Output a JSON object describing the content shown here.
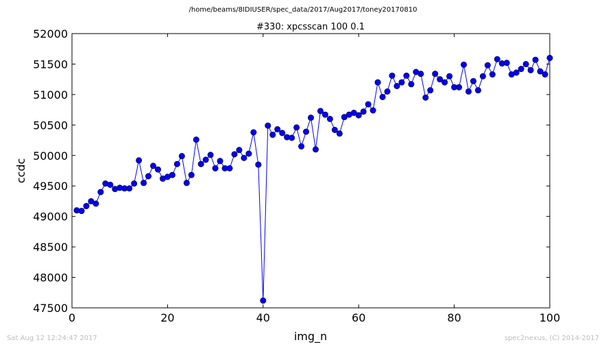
{
  "suptitle": "/home/beams/8IDIUSER/spec_data/2017/Aug2017/toney20170810",
  "footer_left": "Sat Aug 12 12:24:47 2017",
  "footer_right": "spec2nexus, (C) 2014-2017",
  "chart_data": {
    "type": "line",
    "title": "#330: xpcsscan 100 0.1",
    "xlabel": "img_n",
    "ylabel": "ccdc",
    "xlim": [
      0,
      100
    ],
    "ylim": [
      47500,
      52000
    ],
    "xticks": [
      0,
      20,
      40,
      60,
      80,
      100
    ],
    "yticks": [
      47500,
      48000,
      48500,
      49000,
      49500,
      50000,
      50500,
      51000,
      51500,
      52000
    ],
    "grid": false,
    "line_color": "#0000ff",
    "marker": "circle",
    "series": [
      {
        "x": [
          1,
          2,
          3,
          4,
          5,
          6,
          7,
          8,
          9,
          10,
          11,
          12,
          13,
          14,
          15,
          16,
          17,
          18,
          19,
          20,
          21,
          22,
          23,
          24,
          25,
          26,
          27,
          28,
          29,
          30,
          31,
          32,
          33,
          34,
          35,
          36,
          37,
          38,
          39,
          40,
          41,
          42,
          43,
          44,
          45,
          46,
          47,
          48,
          49,
          50,
          51,
          52,
          53,
          54,
          55,
          56,
          57,
          58,
          59,
          60,
          61,
          62,
          63,
          64,
          65,
          66,
          67,
          68,
          69,
          70,
          71,
          72,
          73,
          74,
          75,
          76,
          77,
          78,
          79,
          80,
          81,
          82,
          83,
          84,
          85,
          86,
          87,
          88,
          89,
          90,
          91,
          92,
          93,
          94,
          95,
          96,
          97,
          98,
          99,
          100
        ],
        "y": [
          49100,
          49090,
          49170,
          49250,
          49210,
          49400,
          49540,
          49520,
          49450,
          49470,
          49460,
          49460,
          49540,
          49920,
          49550,
          49660,
          49830,
          49770,
          49620,
          49650,
          49680,
          49860,
          49990,
          49550,
          49680,
          50260,
          49860,
          49930,
          50010,
          49790,
          49910,
          49790,
          49790,
          50020,
          50090,
          49960,
          50030,
          50380,
          49850,
          47620,
          50490,
          50340,
          50430,
          50370,
          50300,
          50290,
          50460,
          50150,
          50390,
          50620,
          50100,
          50730,
          50670,
          50600,
          50420,
          50360,
          50630,
          50670,
          50700,
          50660,
          50720,
          50840,
          50740,
          51200,
          50960,
          51050,
          51310,
          51140,
          51200,
          51310,
          51170,
          51370,
          51340,
          50950,
          51070,
          51340,
          51250,
          51200,
          51300,
          51120,
          51120,
          51490,
          51050,
          51220,
          51070,
          51300,
          51480,
          51330,
          51580,
          51510,
          51520,
          51330,
          51360,
          51420,
          51500,
          51400,
          51570,
          51380,
          51330,
          51600
        ]
      }
    ]
  }
}
